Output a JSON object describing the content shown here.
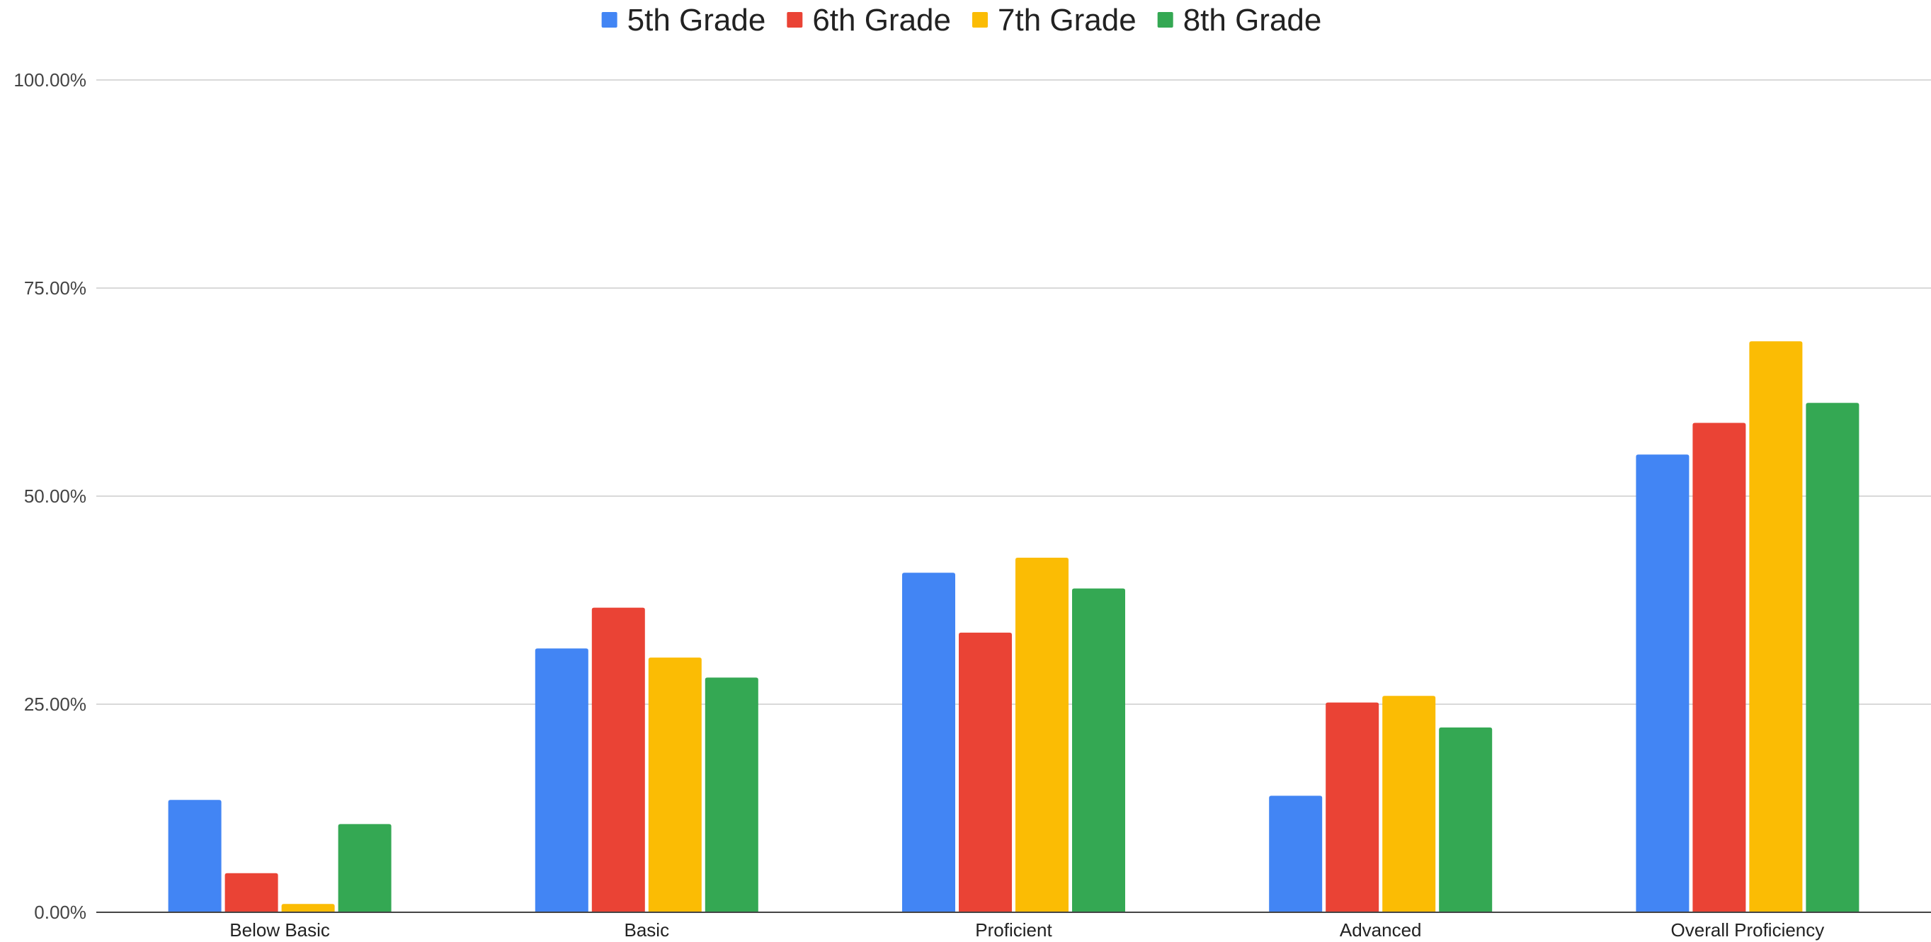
{
  "chart_data": {
    "type": "bar",
    "title": "",
    "xlabel": "",
    "ylabel": "",
    "categories": [
      "Below Basic",
      "Basic",
      "Proficient",
      "Advanced",
      "Overall Proficiency"
    ],
    "series": [
      {
        "name": "5th Grade",
        "color": "#4285F4",
        "values": [
          13.5,
          31.7,
          40.8,
          14.0,
          55.0
        ]
      },
      {
        "name": "6th Grade",
        "color": "#EA4335",
        "values": [
          4.7,
          36.6,
          33.6,
          25.2,
          58.8
        ]
      },
      {
        "name": "7th Grade",
        "color": "#FBBC04",
        "values": [
          1.0,
          30.6,
          42.6,
          26.0,
          68.6
        ]
      },
      {
        "name": "8th Grade",
        "color": "#34A853",
        "values": [
          10.6,
          28.2,
          38.9,
          22.2,
          61.2
        ]
      }
    ],
    "ylim": [
      0,
      100
    ],
    "yticks": [
      "0.00%",
      "25.00%",
      "50.00%",
      "75.00%",
      "100.00%"
    ],
    "ytick_values": [
      0,
      25,
      50,
      75,
      100
    ],
    "grid": true,
    "legend_position": "top-center"
  }
}
